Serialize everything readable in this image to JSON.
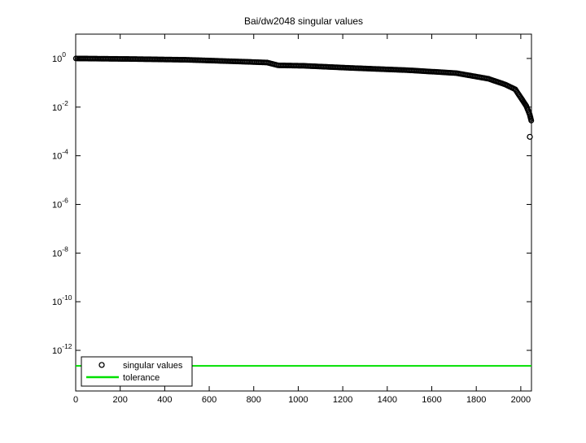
{
  "figure": {
    "background": "#ffffff",
    "axes_color": "#000000"
  },
  "chart_data": {
    "type": "scatter",
    "title": "Bai/dw2048 singular values",
    "xlabel": "",
    "ylabel": "",
    "grid": false,
    "x_axis": {
      "min": 0,
      "max": 2048,
      "ticks": [
        0,
        200,
        400,
        600,
        800,
        1000,
        1200,
        1400,
        1600,
        1800,
        2000
      ]
    },
    "y_axis": {
      "scale": "log10",
      "min_log10": -13.67,
      "max_log10": 1.0,
      "tick_exponents": [
        0,
        -2,
        -4,
        -6,
        -8,
        -10,
        -12
      ],
      "tick_base": "10"
    },
    "legend": {
      "position": "southwest",
      "entries": [
        {
          "label": "singular values",
          "marker": "circle",
          "color": "#000000"
        },
        {
          "label": "tolerance",
          "marker": "line",
          "color": "#00E000"
        }
      ]
    },
    "series": [
      {
        "name": "singular values",
        "type": "scatter-markers",
        "marker": "o",
        "color": "#000000",
        "control_points": [
          [
            1,
            1.0
          ],
          [
            250,
            0.95
          ],
          [
            500,
            0.88
          ],
          [
            750,
            0.74
          ],
          [
            860,
            0.68
          ],
          [
            910,
            0.52
          ],
          [
            1024,
            0.5
          ],
          [
            1230,
            0.41
          ],
          [
            1490,
            0.33
          ],
          [
            1710,
            0.25
          ],
          [
            1855,
            0.146
          ],
          [
            1930,
            0.085
          ],
          [
            1975,
            0.054
          ],
          [
            2005,
            0.021
          ],
          [
            2025,
            0.011
          ],
          [
            2040,
            0.005
          ],
          [
            2047,
            0.0028
          ]
        ],
        "outlier_point": [
          2048,
          0.0006
        ]
      },
      {
        "name": "tolerance",
        "type": "hline",
        "color": "#00E000",
        "value": 2.3e-13
      }
    ]
  }
}
